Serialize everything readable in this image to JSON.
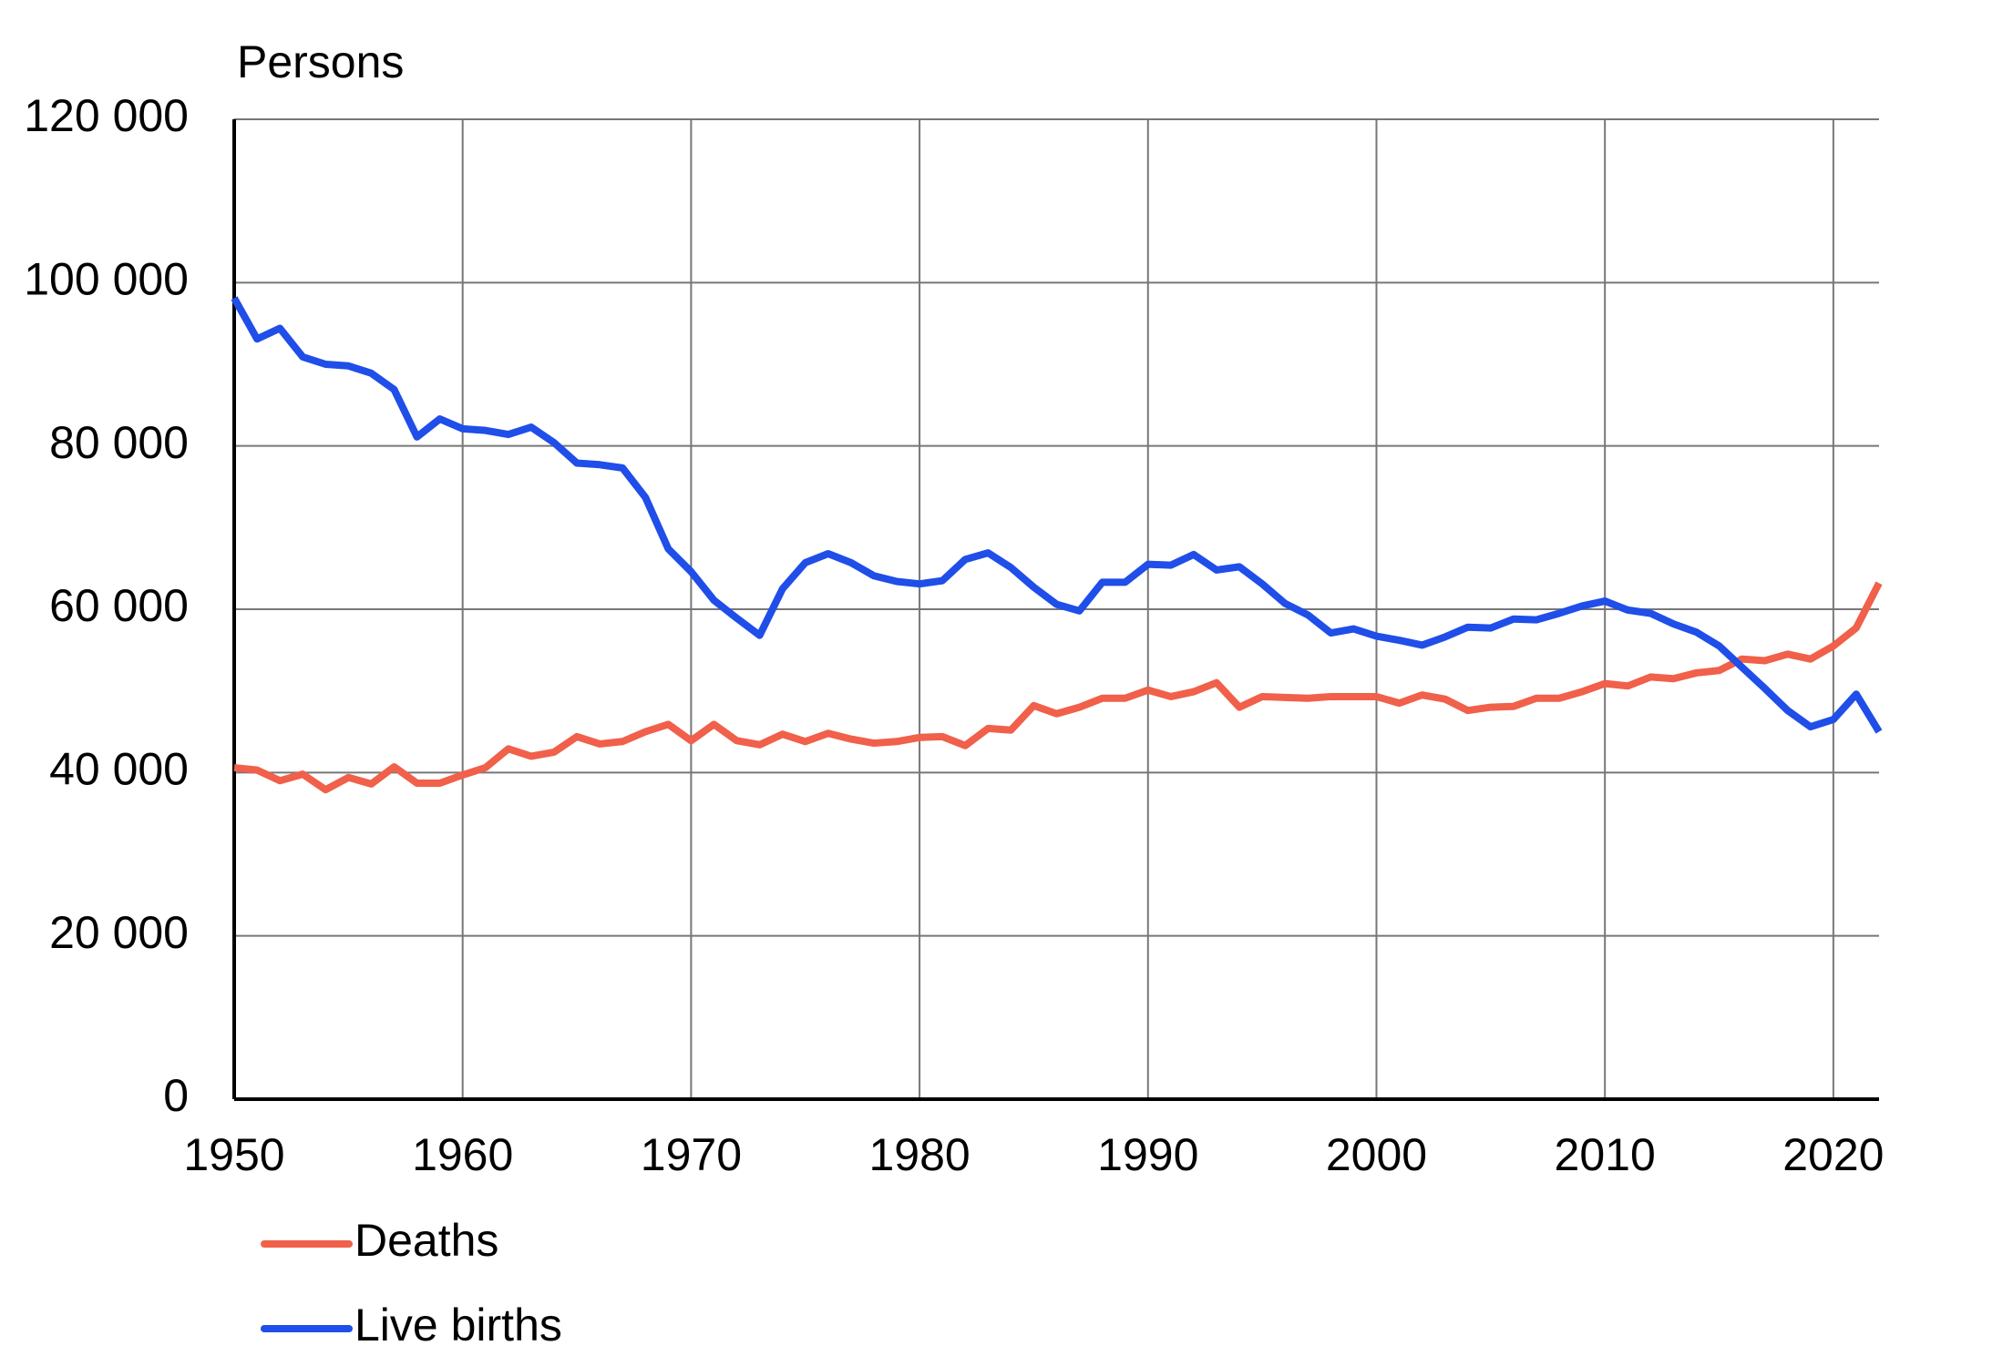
{
  "chart_data": {
    "type": "line",
    "y_label": "Persons",
    "x": [
      1950,
      1951,
      1952,
      1953,
      1954,
      1955,
      1956,
      1957,
      1958,
      1959,
      1960,
      1961,
      1962,
      1963,
      1964,
      1965,
      1966,
      1967,
      1968,
      1969,
      1970,
      1971,
      1972,
      1973,
      1974,
      1975,
      1976,
      1977,
      1978,
      1979,
      1980,
      1981,
      1982,
      1983,
      1984,
      1985,
      1986,
      1987,
      1988,
      1989,
      1990,
      1991,
      1992,
      1993,
      1994,
      1995,
      1996,
      1997,
      1998,
      1999,
      2000,
      2001,
      2002,
      2003,
      2004,
      2005,
      2006,
      2007,
      2008,
      2009,
      2010,
      2011,
      2012,
      2013,
      2014,
      2015,
      2016,
      2017,
      2018,
      2019,
      2020,
      2021,
      2022
    ],
    "series": [
      {
        "name": "Deaths",
        "color": "#f0604a",
        "values": [
          40600,
          40300,
          39000,
          39800,
          37900,
          39400,
          38600,
          40700,
          38700,
          38700,
          39700,
          40600,
          42900,
          42000,
          42500,
          44400,
          43500,
          43800,
          45000,
          45900,
          43900,
          45900,
          43900,
          43400,
          44700,
          43800,
          44800,
          44100,
          43600,
          43800,
          44300,
          44400,
          43300,
          45400,
          45200,
          48200,
          47200,
          48000,
          49100,
          49100,
          50100,
          49300,
          49900,
          51000,
          48000,
          49300,
          49200,
          49100,
          49300,
          49300,
          49300,
          48500,
          49500,
          49000,
          47600,
          48000,
          48100,
          49100,
          49100,
          49900,
          50900,
          50600,
          51700,
          51500,
          52200,
          52500,
          53900,
          53700,
          54500,
          53900,
          55500,
          57700,
          63200
        ]
      },
      {
        "name": "Live births",
        "color": "#1f4ee8",
        "values": [
          98100,
          93100,
          94400,
          90900,
          90000,
          89800,
          88900,
          86900,
          81100,
          83300,
          82100,
          81900,
          81400,
          82300,
          80400,
          77900,
          77700,
          77300,
          73700,
          67400,
          64600,
          61100,
          58900,
          56800,
          62500,
          65700,
          66800,
          65700,
          64100,
          63400,
          63100,
          63500,
          66100,
          66900,
          65100,
          62700,
          60600,
          59800,
          63300,
          63300,
          65500,
          65400,
          66700,
          64800,
          65200,
          63100,
          60700,
          59300,
          57100,
          57600,
          56700,
          56200,
          55600,
          56600,
          57800,
          57700,
          58800,
          58700,
          59500,
          60400,
          61000,
          59900,
          59500,
          58200,
          57200,
          55500,
          52900,
          50300,
          47600,
          45600,
          46500,
          49600,
          45000
        ]
      }
    ],
    "xlim": [
      1950,
      2022
    ],
    "xticks": [
      1950,
      1960,
      1970,
      1980,
      1990,
      2000,
      2010,
      2020
    ],
    "ylim": [
      0,
      120000
    ],
    "yticks": [
      0,
      {
        "value": 20000,
        "label": "20 000"
      },
      {
        "value": 40000,
        "label": "40 000"
      },
      {
        "value": 60000,
        "label": "60 000"
      },
      {
        "value": 80000,
        "label": "80 000"
      },
      {
        "value": 100000,
        "label": "100 000"
      },
      {
        "value": 120000,
        "label": "120 000"
      }
    ],
    "grid": true,
    "legend": "bottom-left"
  }
}
